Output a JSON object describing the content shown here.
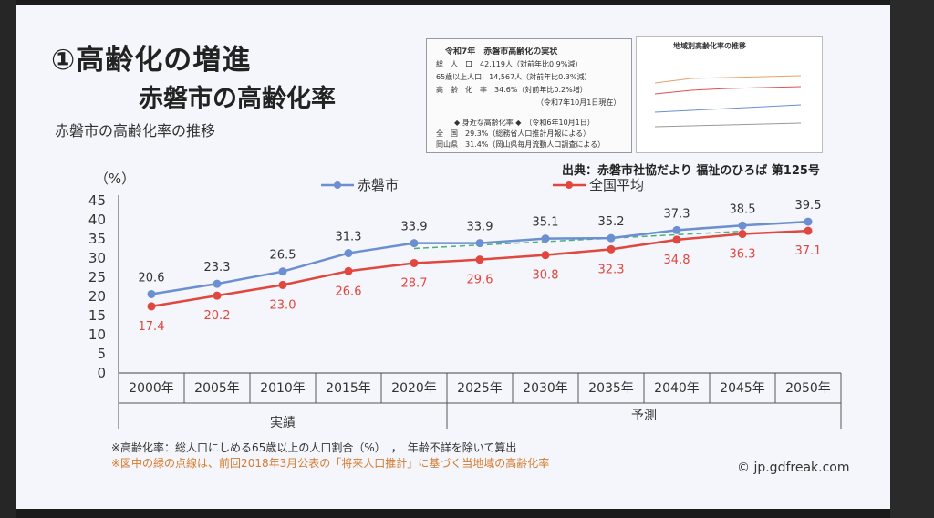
{
  "slide": {
    "title": "①高齢化の増進",
    "subtitle": "赤磐市の高齢化率",
    "section_label": "赤磐市の高齢化率の推移",
    "source": "出典：赤磐市社協だより 福祉のひろば 第125号",
    "note1": "※高齢化率：総人口にしめる65歳以上の人口割合（%）　，　年齢不詳を除いて算出",
    "note2": "※図中の緑の点線は、前回2018年3月公表の「将来人口推計」に基づく当地域の高齢化率",
    "watermark": "© jp.gdfreak.com"
  },
  "info_box": {
    "title": "令和7年　赤磐市高齢化の実状",
    "rows": [
      "総　人　口　42,119人（対前年比0.9%減）",
      "65歳以上人口　14,567人（対前年比0.3%減）",
      "高　齢　化　率　34.6%（対前年比0.2%増）",
      "（令和7年10月1日現在）",
      "◆ 身近な高齢化率 ◆　（令和6年10月1日）",
      "全　国　29.3%（総務省人口推計月報による）",
      "岡山県　31.4%（岡山県毎月流動人口調査による）"
    ]
  },
  "mini_chart": {
    "title": "地域別高齢化率の推移"
  },
  "chart_data": {
    "type": "line",
    "categories": [
      "2000年",
      "2005年",
      "2010年",
      "2015年",
      "2020年",
      "2025年",
      "2030年",
      "2035年",
      "2040年",
      "2045年",
      "2050年"
    ],
    "ylabel": "（%）",
    "ylim": [
      0,
      45
    ],
    "yticks": [
      "0",
      "5",
      "10",
      "15",
      "20",
      "25",
      "30",
      "35",
      "40",
      "45"
    ],
    "group_labels": [
      "実績",
      "予測"
    ],
    "series": [
      {
        "name": "赤磐市",
        "color": "#6b8fd0",
        "values": [
          20.6,
          23.3,
          26.5,
          31.3,
          33.9,
          33.9,
          35.1,
          35.2,
          37.3,
          38.5,
          39.5
        ],
        "labels": [
          "20.6",
          "23.3",
          "26.5",
          "31.3",
          "33.9",
          "33.9",
          "35.1",
          "35.2",
          "37.3",
          "38.5",
          "39.5"
        ]
      },
      {
        "name": "全国平均",
        "color": "#e0473f",
        "values": [
          17.4,
          20.2,
          23.0,
          26.6,
          28.7,
          29.6,
          30.8,
          32.3,
          34.8,
          36.3,
          37.1
        ],
        "labels": [
          "17.4",
          "20.2",
          "23.0",
          "26.6",
          "28.7",
          "29.6",
          "30.8",
          "32.3",
          "34.8",
          "36.3",
          "37.1"
        ]
      }
    ],
    "green_dashed_note": "previous 2018 projection",
    "green_dashed": {
      "color": "#4caf7d",
      "x_start": "2020年",
      "x_end": "2045年",
      "values_start_end": [
        32.5,
        37.0
      ]
    },
    "legend": "top"
  }
}
